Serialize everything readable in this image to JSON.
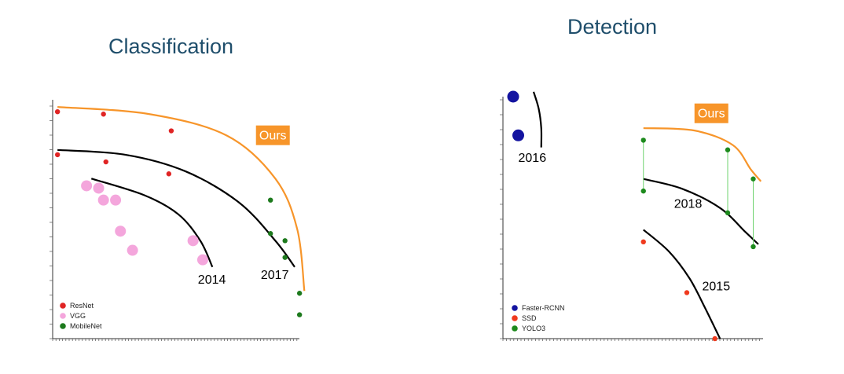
{
  "colors": {
    "resnet": "#e02424",
    "vgg": "#f4a6dc",
    "mobilenet": "#1d7a1d",
    "faster_rcnn": "#1414a0",
    "ssd": "#f03a1e",
    "yolo3": "#1d8a1d",
    "ours": "#f7952a",
    "curve": "#000000",
    "connector": "#6fd36f",
    "title": "#1f4e6b"
  },
  "chart_data": [
    {
      "type": "scatter",
      "title": "Classification",
      "xlabel": "",
      "ylabel": "",
      "xlim": [
        0,
        100
      ],
      "ylim": [
        0,
        100
      ],
      "grid": false,
      "legend": "bottom-left",
      "series": [
        {
          "name": "ResNet",
          "color_key": "resnet",
          "size": "small",
          "points": [
            [
              2,
              95
            ],
            [
              21,
              94
            ],
            [
              49,
              87
            ],
            [
              2,
              77
            ],
            [
              22,
              74
            ],
            [
              48,
              69
            ]
          ]
        },
        {
          "name": "VGG",
          "color_key": "vgg",
          "size": "large",
          "points": [
            [
              14,
              64
            ],
            [
              19,
              63
            ],
            [
              21,
              58
            ],
            [
              26,
              58
            ],
            [
              28,
              45
            ],
            [
              33,
              37
            ],
            [
              58,
              41
            ],
            [
              62,
              33
            ]
          ]
        },
        {
          "name": "MobileNet",
          "color_key": "mobilenet",
          "size": "small",
          "points": [
            [
              90,
              58
            ],
            [
              90,
              44
            ],
            [
              96,
              41
            ],
            [
              96,
              34
            ],
            [
              102,
              19
            ],
            [
              102,
              10
            ]
          ]
        }
      ],
      "frontiers": [
        {
          "label": "2014",
          "color_key": "curve",
          "points": [
            [
              16,
              67
            ],
            [
              38,
              60
            ],
            [
              52,
              52
            ],
            [
              61,
              41
            ],
            [
              66,
              30
            ]
          ]
        },
        {
          "label": "2017",
          "color_key": "curve",
          "points": [
            [
              2,
              79
            ],
            [
              30,
              77
            ],
            [
              55,
              70
            ],
            [
              77,
              57
            ],
            [
              92,
              41
            ],
            [
              100,
              30
            ]
          ]
        },
        {
          "label": "Ours",
          "color_key": "ours",
          "points": [
            [
              2,
              97
            ],
            [
              40,
              94
            ],
            [
              72,
              85
            ],
            [
              92,
              67
            ],
            [
              101,
              46
            ],
            [
              104,
              20
            ]
          ]
        }
      ],
      "annotations": [
        {
          "text": "2014",
          "x": 60,
          "y": 23
        },
        {
          "text": "2017",
          "x": 86,
          "y": 25
        },
        {
          "text": "Ours",
          "x": 84,
          "y": 83,
          "boxed": true
        }
      ]
    },
    {
      "type": "scatter",
      "title": "Detection",
      "xlabel": "",
      "ylabel": "",
      "xlim": [
        0,
        100
      ],
      "ylim": [
        0,
        100
      ],
      "grid": false,
      "legend": "bottom-left",
      "series": [
        {
          "name": "Faster-RCNN",
          "color_key": "faster_rcnn",
          "size": "large",
          "points": [
            [
              4,
              100
            ],
            [
              6,
              84
            ]
          ]
        },
        {
          "name": "SSD",
          "color_key": "ssd",
          "size": "small",
          "points": [
            [
              55,
              40
            ],
            [
              72,
              19
            ],
            [
              83,
              0
            ]
          ]
        },
        {
          "name": "YOLO3",
          "color_key": "yolo3",
          "size": "small",
          "points": [
            [
              55,
              82
            ],
            [
              55,
              61
            ],
            [
              88,
              78
            ],
            [
              88,
              52
            ],
            [
              98,
              66
            ],
            [
              98,
              38
            ]
          ]
        }
      ],
      "connectors": [
        {
          "from": [
            55,
            82
          ],
          "to": [
            55,
            61
          ]
        },
        {
          "from": [
            88,
            78
          ],
          "to": [
            88,
            52
          ]
        },
        {
          "from": [
            98,
            66
          ],
          "to": [
            98,
            38
          ]
        }
      ],
      "frontiers": [
        {
          "label": "2016",
          "color_key": "curve",
          "points": [
            [
              12,
              102
            ],
            [
              14,
              95
            ],
            [
              15,
              87
            ],
            [
              15,
              79
            ]
          ]
        },
        {
          "label": "2018",
          "color_key": "curve",
          "points": [
            [
              55,
              66
            ],
            [
              70,
              62
            ],
            [
              85,
              54
            ],
            [
              95,
              44
            ],
            [
              100,
              39
            ]
          ]
        },
        {
          "label": "2015",
          "color_key": "curve",
          "points": [
            [
              55,
              45
            ],
            [
              65,
              36
            ],
            [
              73,
              25
            ],
            [
              79,
              13
            ],
            [
              85,
              0
            ]
          ]
        },
        {
          "label": "Ours",
          "color_key": "ours",
          "points": [
            [
              55,
              87
            ],
            [
              75,
              86
            ],
            [
              90,
              80
            ],
            [
              97,
              70
            ],
            [
              101,
              65
            ]
          ]
        }
      ],
      "annotations": [
        {
          "text": "2016",
          "x": 6,
          "y": 73
        },
        {
          "text": "2018",
          "x": 67,
          "y": 54
        },
        {
          "text": "2015",
          "x": 78,
          "y": 20
        },
        {
          "text": "Ours",
          "x": 75,
          "y": 91,
          "boxed": true
        }
      ]
    }
  ]
}
